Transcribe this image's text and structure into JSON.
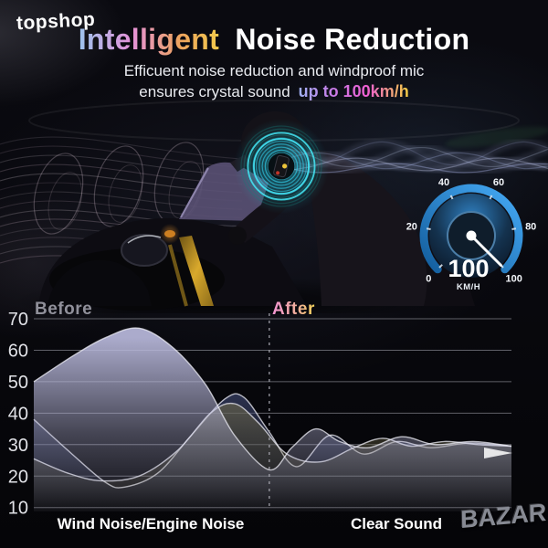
{
  "brand": {
    "logo": "topshop",
    "watermark": "BAZAR"
  },
  "header": {
    "title_highlight": "Intelligent",
    "title_rest": "Noise Reduction",
    "subtitle_line1": "Efficuent noise reduction and windproof mic",
    "subtitle_line2": "ensures crystal sound",
    "subtitle_highlight": "up to 100km/h"
  },
  "colors": {
    "title_gradient": [
      "#9cc3ee",
      "#e492d8",
      "#eda45e",
      "#f2c94c"
    ],
    "speed_highlight_gradient": [
      "#9fb0f5",
      "#c77de8",
      "#ee5fd2",
      "#f5d040"
    ],
    "after_label_gradient": [
      "#f394d4",
      "#f6d658"
    ],
    "ring_cyan": "#2fd0e6",
    "gauge_blue": "#3fa9f5"
  },
  "gauge": {
    "ticks": [
      "0",
      "20",
      "40",
      "60",
      "80",
      "100"
    ],
    "value": "100",
    "unit": "KM/H"
  },
  "chart_data": {
    "type": "area",
    "title": "",
    "xlabel": "",
    "ylabel": "",
    "ylim": [
      10,
      70
    ],
    "y_ticks": [
      70,
      60,
      50,
      40,
      30,
      20,
      10
    ],
    "grid": true,
    "before_label": "Before",
    "after_label": "After",
    "x_caption_left": "Wind Noise/Engine Noise",
    "x_caption_right": "Clear Sound",
    "divider_x_percent": 49.3,
    "series": [
      {
        "name": "engine-noise-wave",
        "color": "#46507e",
        "points": [
          [
            0,
            38
          ],
          [
            8,
            27
          ],
          [
            15,
            18
          ],
          [
            19,
            16.5
          ],
          [
            26,
            21
          ],
          [
            33,
            33
          ],
          [
            40,
            44.5
          ],
          [
            44,
            45
          ],
          [
            49.3,
            34
          ],
          [
            55,
            23
          ],
          [
            62,
            33
          ],
          [
            69,
            27
          ],
          [
            76,
            31
          ],
          [
            83,
            29
          ],
          [
            91,
            30.5
          ],
          [
            100,
            29.5
          ]
        ]
      },
      {
        "name": "wind-noise-wave",
        "color": "#7a744e",
        "points": [
          [
            0,
            25.5
          ],
          [
            7,
            21
          ],
          [
            14,
            18.5
          ],
          [
            22,
            20
          ],
          [
            30,
            28
          ],
          [
            37,
            40
          ],
          [
            42,
            43
          ],
          [
            47,
            37
          ],
          [
            53,
            27
          ],
          [
            60,
            24.5
          ],
          [
            67,
            29
          ],
          [
            73,
            32
          ],
          [
            79,
            29.5
          ],
          [
            86,
            31
          ],
          [
            93,
            30
          ],
          [
            100,
            29.5
          ]
        ]
      },
      {
        "name": "ambient-noise-wave",
        "color": "#b9b9dc",
        "points": [
          [
            0,
            50
          ],
          [
            8,
            58
          ],
          [
            15,
            64
          ],
          [
            22,
            67
          ],
          [
            29,
            61
          ],
          [
            36,
            49
          ],
          [
            42,
            33
          ],
          [
            49.3,
            22
          ],
          [
            54,
            29
          ],
          [
            59,
            35
          ],
          [
            64,
            31
          ],
          [
            70,
            29
          ],
          [
            77,
            32.5
          ],
          [
            84,
            30
          ],
          [
            92,
            31
          ],
          [
            100,
            29.5
          ]
        ]
      }
    ]
  }
}
